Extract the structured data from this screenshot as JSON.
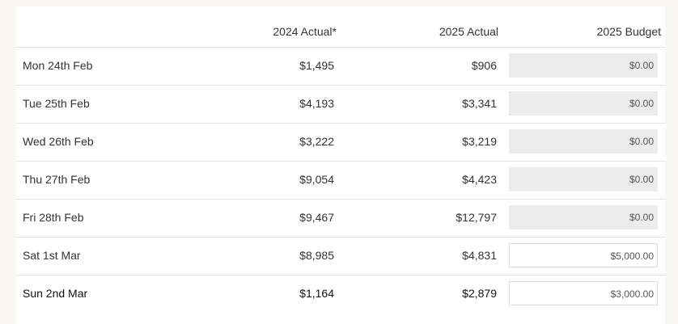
{
  "header": {
    "columns": [
      "2024 Actual*",
      "2025 Actual",
      "2025 Budget"
    ]
  },
  "table": {
    "rows": [
      {
        "day": "Mon 24th Feb",
        "actual_2024": "$1,495",
        "actual_2025": "$906",
        "budget": "$0.00",
        "locked": true
      },
      {
        "day": "Tue 25th Feb",
        "actual_2024": "$4,193",
        "actual_2025": "$3,341",
        "budget": "$0.00",
        "locked": true
      },
      {
        "day": "Wed 26th Feb",
        "actual_2024": "$3,222",
        "actual_2025": "$3,219",
        "budget": "$0.00",
        "locked": true
      },
      {
        "day": "Thu 27th Feb",
        "actual_2024": "$9,054",
        "actual_2025": "$4,423",
        "budget": "$0.00",
        "locked": true
      },
      {
        "day": "Fri 28th Feb",
        "actual_2024": "$9,467",
        "actual_2025": "$12,797",
        "budget": "$0.00",
        "locked": true
      },
      {
        "day": "Sat 1st Mar",
        "actual_2024": "$8,985",
        "actual_2025": "$4,831",
        "budget": "$5,000.00",
        "locked": false
      },
      {
        "day": "Sun 2nd Mar",
        "actual_2024": "$1,164",
        "actual_2025": "$2,879",
        "budget": "$3,000.00",
        "locked": false
      }
    ]
  }
}
